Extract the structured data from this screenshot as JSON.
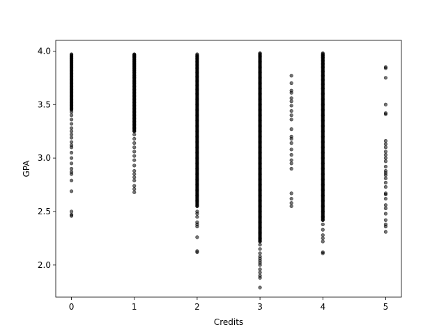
{
  "chart_data": {
    "type": "scatter",
    "title": "",
    "xlabel": "Credits",
    "ylabel": "GPA",
    "xlim": [
      -0.25,
      5.25
    ],
    "ylim": [
      1.7,
      4.1
    ],
    "xticks": [
      0,
      1,
      2,
      3,
      4,
      5
    ],
    "xtick_labels": [
      "0",
      "1",
      "2",
      "3",
      "4",
      "5"
    ],
    "yticks": [
      2.0,
      2.5,
      3.0,
      3.5,
      4.0
    ],
    "ytick_labels": [
      "2.0",
      "2.5",
      "3.0",
      "3.5",
      "4.0"
    ],
    "grid": false,
    "point_color": "#000000",
    "columns": [
      {
        "x": 0,
        "dense_ranges": [
          [
            3.45,
            3.97
          ]
        ],
        "y": [
          3.97,
          3.95,
          3.93,
          3.91,
          3.89,
          3.87,
          3.85,
          3.82,
          3.79,
          3.76,
          3.73,
          3.7,
          3.67,
          3.64,
          3.61,
          3.58,
          3.55,
          3.52,
          3.49,
          3.46,
          3.43,
          3.4,
          3.36,
          3.32,
          3.28,
          3.25,
          3.22,
          3.19,
          3.15,
          3.12,
          3.1,
          3.05,
          3.0,
          2.95,
          2.9,
          2.87,
          2.85,
          2.79,
          2.69,
          2.5,
          2.47,
          2.46
        ]
      },
      {
        "x": 1,
        "dense_ranges": [
          [
            3.25,
            3.97
          ]
        ],
        "y": [
          3.97,
          3.96,
          3.95,
          3.94,
          3.92,
          3.9,
          3.88,
          3.86,
          3.84,
          3.82,
          3.8,
          3.77,
          3.75,
          3.72,
          3.7,
          3.67,
          3.64,
          3.61,
          3.58,
          3.55,
          3.52,
          3.49,
          3.46,
          3.43,
          3.4,
          3.37,
          3.34,
          3.31,
          3.28,
          3.25,
          3.22,
          3.18,
          3.14,
          3.1,
          3.06,
          3.02,
          2.98,
          2.93,
          2.88,
          2.85,
          2.82,
          2.79,
          2.74,
          2.71,
          2.68
        ]
      },
      {
        "x": 2,
        "dense_ranges": [
          [
            2.55,
            3.97
          ]
        ],
        "y": [
          3.97,
          3.95,
          3.93,
          3.9,
          3.87,
          3.84,
          3.8,
          3.76,
          3.72,
          3.68,
          3.64,
          3.6,
          3.55,
          3.5,
          3.45,
          3.4,
          3.35,
          3.3,
          3.25,
          3.2,
          3.15,
          3.1,
          3.05,
          3.0,
          2.95,
          2.9,
          2.85,
          2.8,
          2.75,
          2.7,
          2.65,
          2.6,
          2.55,
          2.5,
          2.48,
          2.45,
          2.4,
          2.38,
          2.36,
          2.26,
          2.13,
          2.12
        ]
      },
      {
        "x": 3,
        "dense_ranges": [
          [
            2.22,
            3.98
          ]
        ],
        "y": [
          3.98,
          3.95,
          3.9,
          3.85,
          3.8,
          3.75,
          3.7,
          3.65,
          3.6,
          3.55,
          3.5,
          3.45,
          3.4,
          3.35,
          3.3,
          3.25,
          3.2,
          3.15,
          3.1,
          3.05,
          3.0,
          2.95,
          2.9,
          2.85,
          2.8,
          2.75,
          2.7,
          2.65,
          2.6,
          2.55,
          2.5,
          2.45,
          2.4,
          2.35,
          2.3,
          2.25,
          2.22,
          2.19,
          2.15,
          2.11,
          2.08,
          2.06,
          2.04,
          2.02,
          2.0,
          1.96,
          1.93,
          1.9,
          1.88,
          1.79
        ]
      },
      {
        "x": 3.5,
        "dense_ranges": [],
        "y": [
          3.77,
          3.7,
          3.63,
          3.61,
          3.56,
          3.53,
          3.49,
          3.44,
          3.4,
          3.36,
          3.27,
          3.2,
          3.18,
          3.14,
          3.08,
          3.03,
          2.98,
          2.95,
          2.9,
          2.67,
          2.62,
          2.58,
          2.55
        ]
      },
      {
        "x": 4,
        "dense_ranges": [
          [
            2.42,
            3.98
          ]
        ],
        "y": [
          3.98,
          3.96,
          3.94,
          3.91,
          3.88,
          3.85,
          3.81,
          3.77,
          3.73,
          3.69,
          3.65,
          3.6,
          3.55,
          3.5,
          3.45,
          3.4,
          3.35,
          3.3,
          3.25,
          3.2,
          3.15,
          3.1,
          3.05,
          3.0,
          2.95,
          2.9,
          2.85,
          2.8,
          2.75,
          2.7,
          2.65,
          2.6,
          2.55,
          2.5,
          2.45,
          2.42,
          2.38,
          2.33,
          2.28,
          2.25,
          2.22,
          2.12,
          2.11
        ]
      },
      {
        "x": 5,
        "dense_ranges": [],
        "y": [
          3.85,
          3.84,
          3.75,
          3.5,
          3.42,
          3.41,
          3.16,
          3.13,
          3.1,
          3.06,
          3.03,
          3.0,
          2.97,
          2.92,
          2.88,
          2.86,
          2.84,
          2.81,
          2.77,
          2.73,
          2.67,
          2.66,
          2.62,
          2.56,
          2.53,
          2.48,
          2.42,
          2.38,
          2.36,
          2.31
        ]
      }
    ]
  }
}
